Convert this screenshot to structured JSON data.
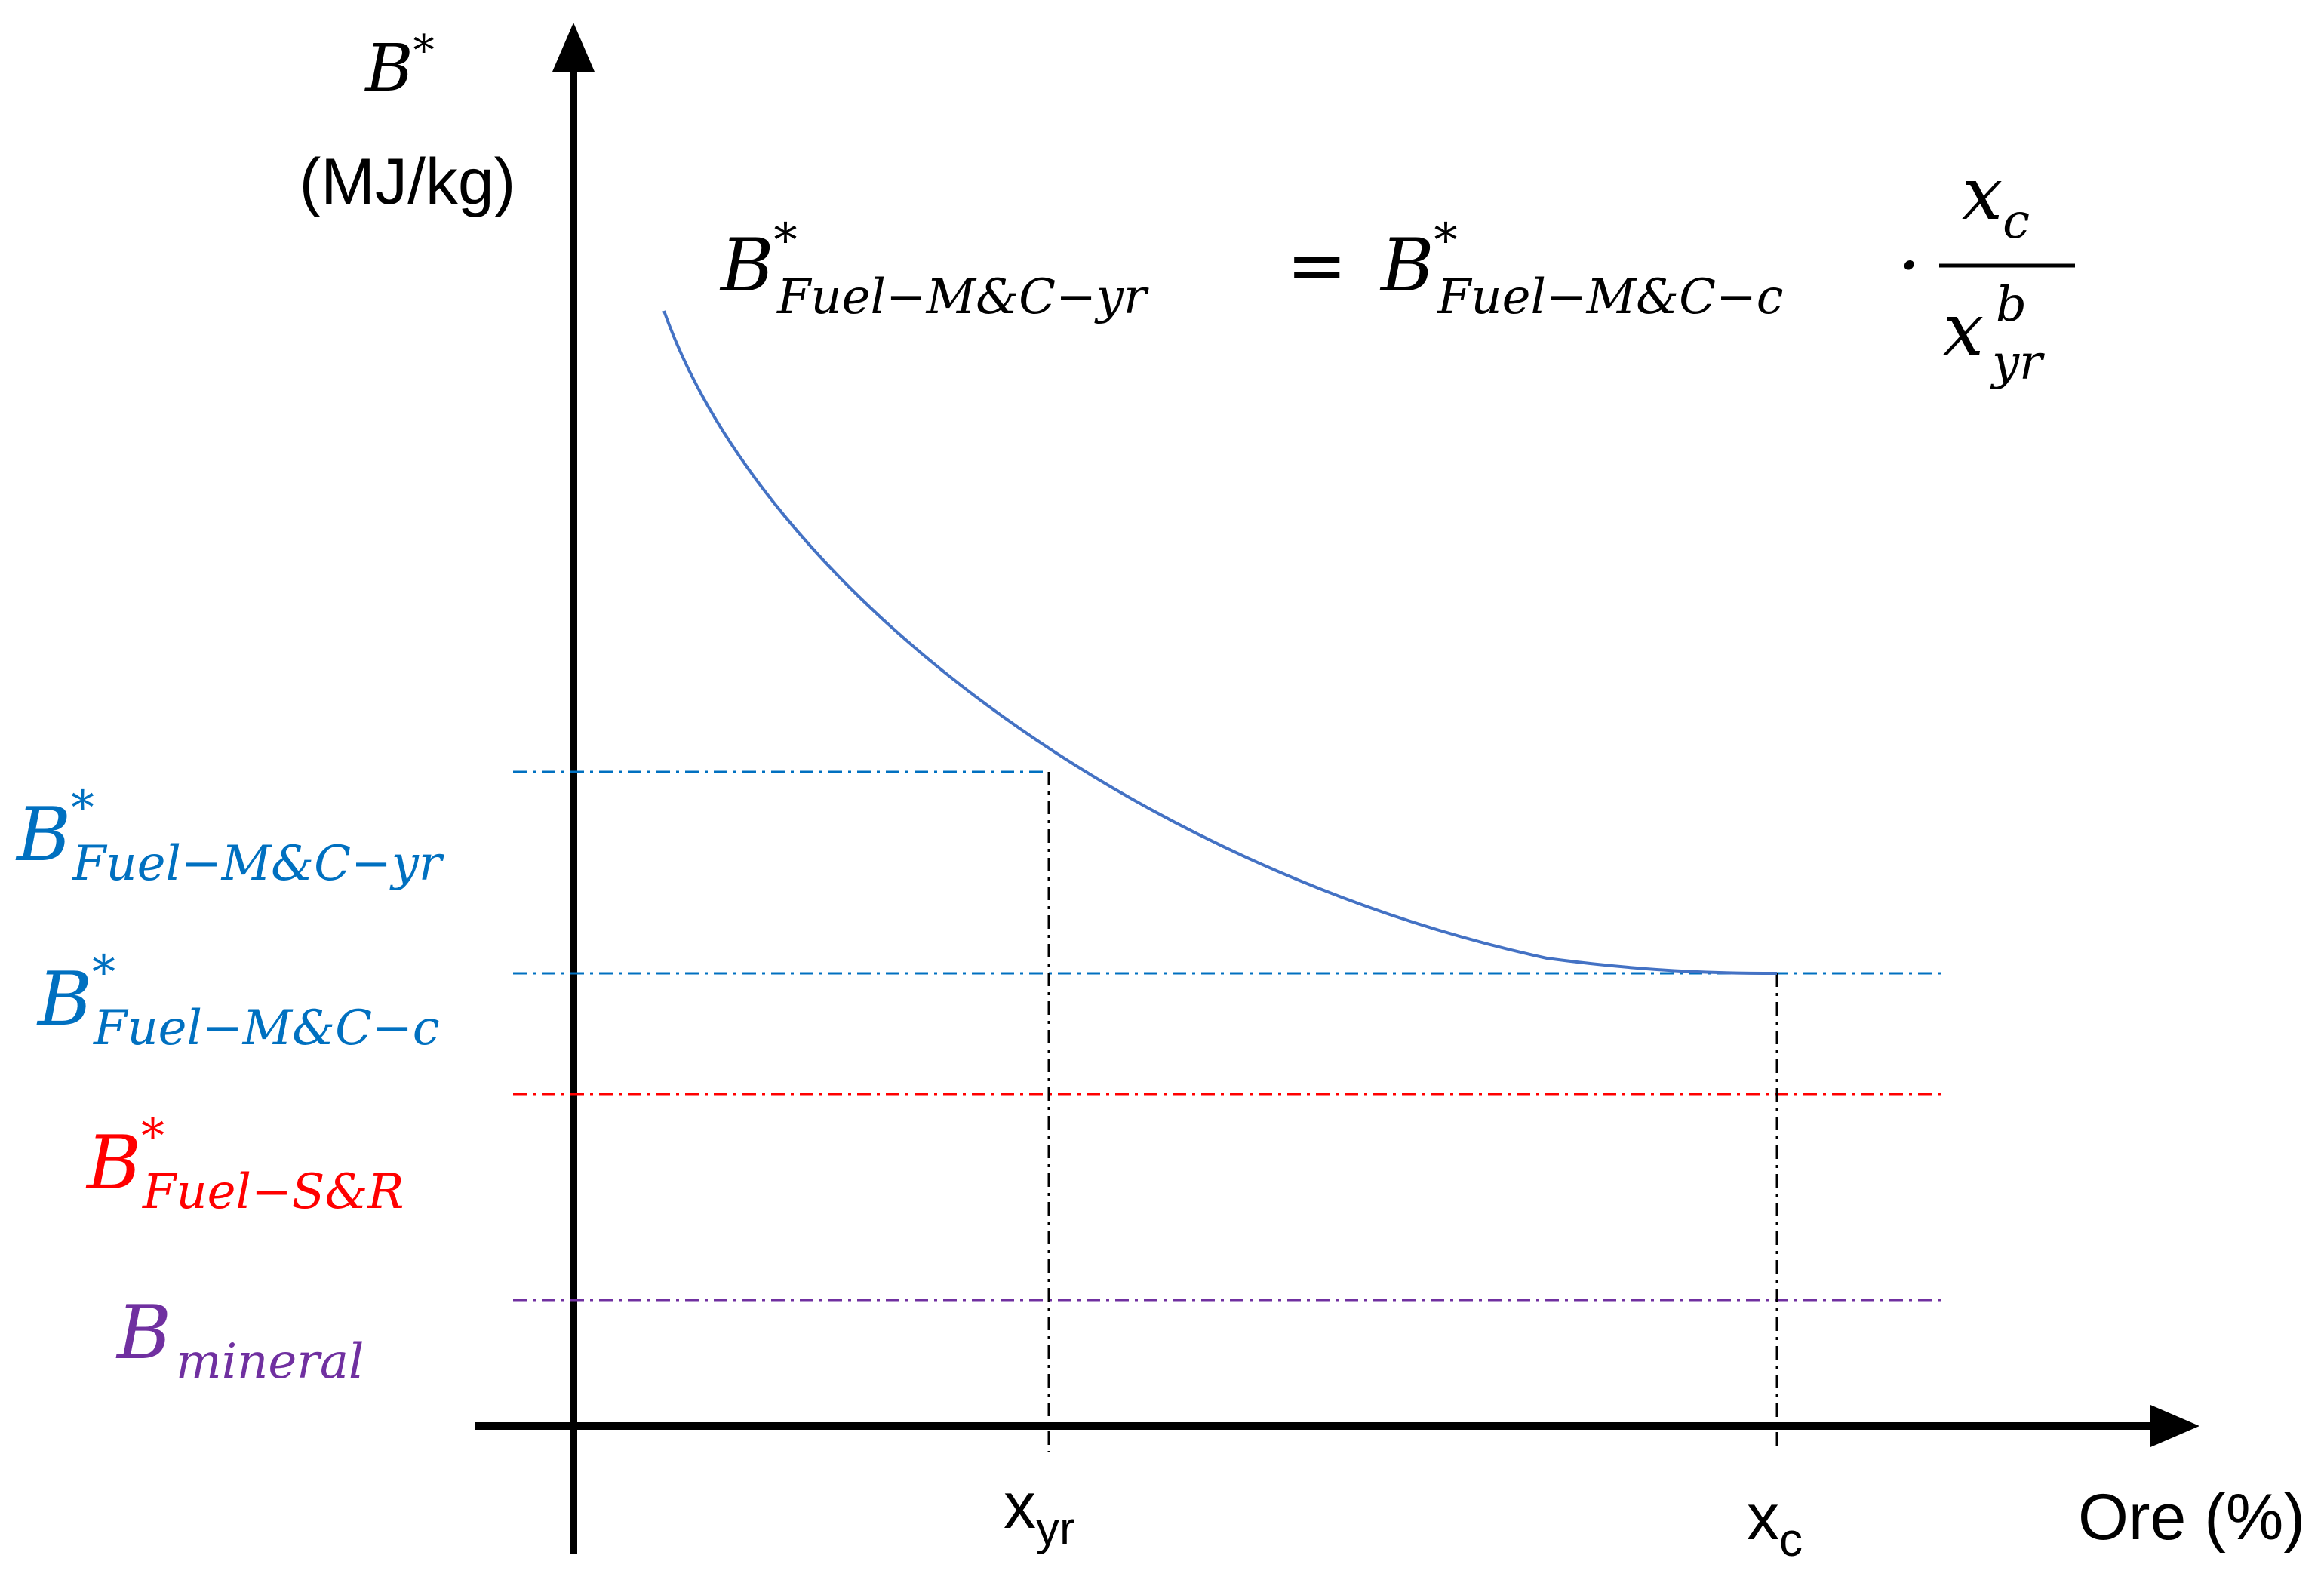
{
  "colors": {
    "axis": "#000000",
    "curve": "#4472c4",
    "level_yr": "#0070c0",
    "level_c": "#0070c0",
    "level_sr": "#ff0000",
    "level_mineral": "#7030a0",
    "background": "#ffffff"
  },
  "y_axis": {
    "symbol": "B",
    "superscript": "*",
    "unit": "(MJ/kg)"
  },
  "x_axis": {
    "label": "Ore (%)",
    "ticks": [
      {
        "base": "x",
        "sub": "yr"
      },
      {
        "base": "x",
        "sub": "c"
      }
    ]
  },
  "equation": {
    "lhs_symbol": "B",
    "lhs_sup": "*",
    "lhs_sub": "Fuel−M&C−yr",
    "equals": "=",
    "rhs_symbol": "B",
    "rhs_sup": "*",
    "rhs_sub": "Fuel−M&C−c",
    "dot": "·",
    "numerator_base": "x",
    "numerator_sub": "c",
    "denominator_base": "x",
    "denominator_sub": "yr",
    "denominator_sup": "b"
  },
  "levels": [
    {
      "symbol": "B",
      "sup": "*",
      "sub": "Fuel−M&C−yr",
      "color": "#0070c0"
    },
    {
      "symbol": "B",
      "sup": "*",
      "sub": "Fuel−M&C−c",
      "color": "#0070c0"
    },
    {
      "symbol": "B",
      "sup": "*",
      "sub": "Fuel−S&R",
      "color": "#ff0000"
    },
    {
      "symbol": "B",
      "sup": "",
      "sub": "mineral",
      "color": "#7030a0"
    }
  ],
  "curve": {
    "formula_shape": "decreasing hyperbolic, B* = B*c · xc / x^b",
    "color": "#4472c4"
  }
}
